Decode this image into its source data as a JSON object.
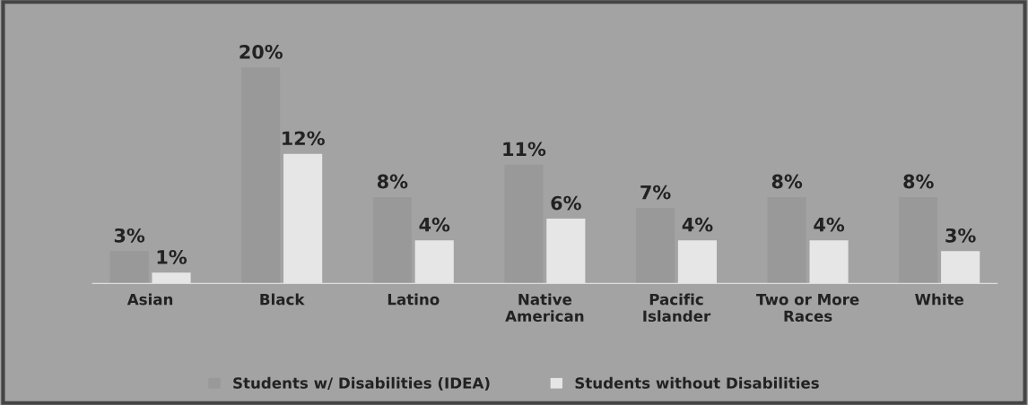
{
  "chart_data": {
    "type": "bar",
    "categories": [
      "Asian",
      "Black",
      "Latino",
      "Native\nAmerican",
      "Pacific\nIslander",
      "Two or More\nRaces",
      "White"
    ],
    "series": [
      {
        "name": "Students w/ Disabilities (IDEA)",
        "color": "#999999",
        "values": [
          3,
          20,
          8,
          11,
          7,
          8,
          8
        ],
        "value_labels": [
          "3%",
          "20%",
          "8%",
          "11%",
          "7%",
          "8%",
          "8%"
        ]
      },
      {
        "name": "Students without Disabilities",
        "color": "#e6e6e6",
        "values": [
          1,
          12,
          4,
          6,
          4,
          4,
          3
        ],
        "value_labels": [
          "1%",
          "12%",
          "4%",
          "6%",
          "4%",
          "4%",
          "3%"
        ]
      }
    ],
    "legend": "bottom"
  }
}
